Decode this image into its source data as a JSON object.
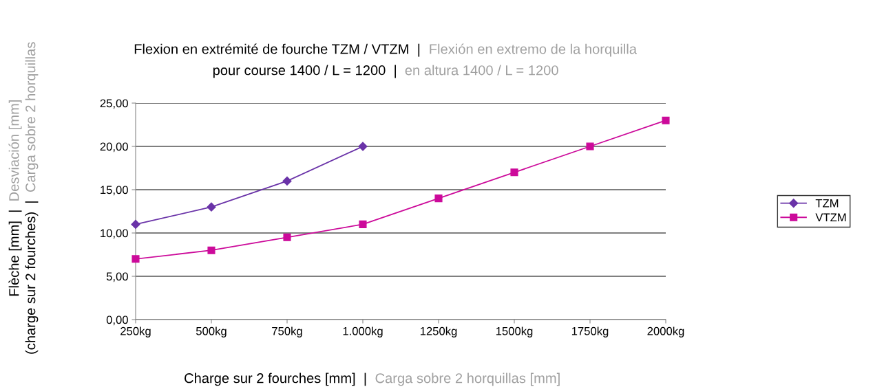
{
  "chart_data": {
    "type": "line",
    "title": "Flexion en extrémité de fourche TZM / VTZM  |  Flexión en extremo de la horquilla\npour course 1400 / L = 1200  |  en altura 1400 / L = 1200",
    "xlabel": "Charge sur 2 fourches [mm]  |  Carga sobre 2 horquillas [mm]",
    "ylabel": "Flèche [mm]  |  Desviación [mm]\n(charge sur 2 fourches)  |  Carga sobre 2 horquillas",
    "categories": [
      "250kg",
      "500kg",
      "750kg",
      "1.000kg",
      "1250kg",
      "1500kg",
      "1750kg",
      "2000kg"
    ],
    "series": [
      {
        "name": "TZM",
        "color": "#6a33a8",
        "marker": "diamond",
        "values": [
          11,
          13,
          16,
          20,
          null,
          null,
          null,
          null
        ]
      },
      {
        "name": "VTZM",
        "color": "#cc0a9a",
        "marker": "square",
        "values": [
          7,
          8,
          9.5,
          11,
          14,
          17,
          20,
          23
        ]
      }
    ],
    "ylim": [
      0,
      25
    ],
    "yticks": [
      {
        "value": 0,
        "label": "0,00"
      },
      {
        "value": 5,
        "label": "5,00"
      },
      {
        "value": 10,
        "label": "10,00"
      },
      {
        "value": 15,
        "label": "15,00"
      },
      {
        "value": 20,
        "label": "20,00"
      },
      {
        "value": 25,
        "label": "25,00"
      }
    ],
    "grid": "y",
    "legend": "right",
    "line_style": "solid"
  }
}
